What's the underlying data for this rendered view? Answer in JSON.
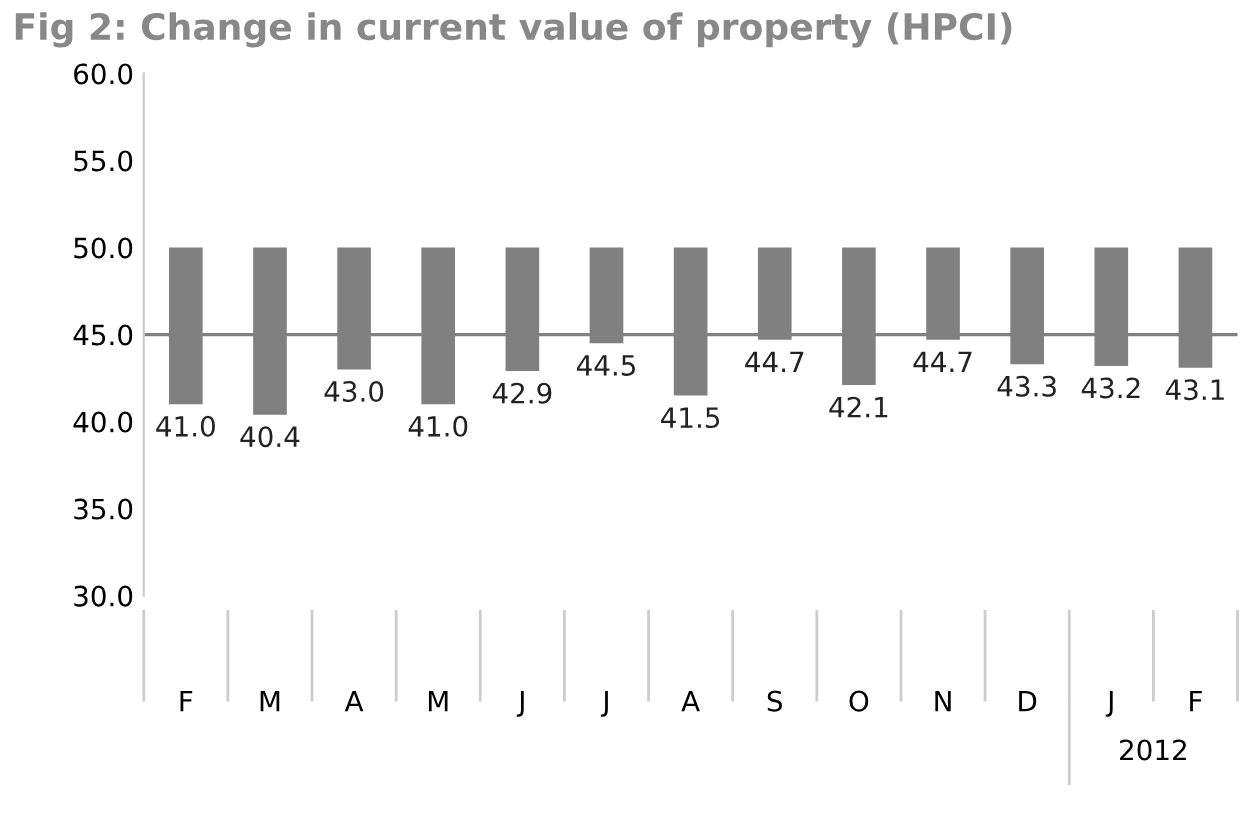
{
  "chart_data": {
    "type": "bar",
    "title": "Fig 2: Change in current value of property (HPCI)",
    "categories": [
      "F",
      "M",
      "A",
      "M",
      "J",
      "J",
      "A",
      "S",
      "O",
      "N",
      "D",
      "J",
      "F"
    ],
    "base": [
      50,
      50,
      50,
      50,
      50,
      50,
      50,
      50,
      50,
      50,
      50,
      50,
      50
    ],
    "values": [
      -9.0,
      -9.6,
      -7.0,
      -9.0,
      -7.1,
      -5.5,
      -8.5,
      -5.3,
      -7.9,
      -5.3,
      -6.7,
      -6.8,
      -6.9
    ],
    "value_labels": [
      "41.0",
      "40.4",
      "43.0",
      "41.0",
      "42.9",
      "44.5",
      "41.5",
      "44.7",
      "42.1",
      "44.7",
      "43.3",
      "43.2",
      "43.1"
    ],
    "color": "#808080",
    "ylim": [
      30,
      60
    ],
    "yticks": [
      {
        "value": 30,
        "label": "30.0"
      },
      {
        "value": 35,
        "label": "35.0"
      },
      {
        "value": 40,
        "label": "40.0"
      },
      {
        "value": 45,
        "label": "45.0"
      },
      {
        "value": 50,
        "label": "50.0"
      },
      {
        "value": 55,
        "label": "55.0"
      },
      {
        "value": 60,
        "label": "60.0"
      }
    ],
    "ref_lines": [
      {
        "axis": "y",
        "value": 45,
        "label": null,
        "color": "#808080"
      }
    ],
    "annotations": [
      "2012"
    ],
    "grid": false,
    "legend": false
  }
}
